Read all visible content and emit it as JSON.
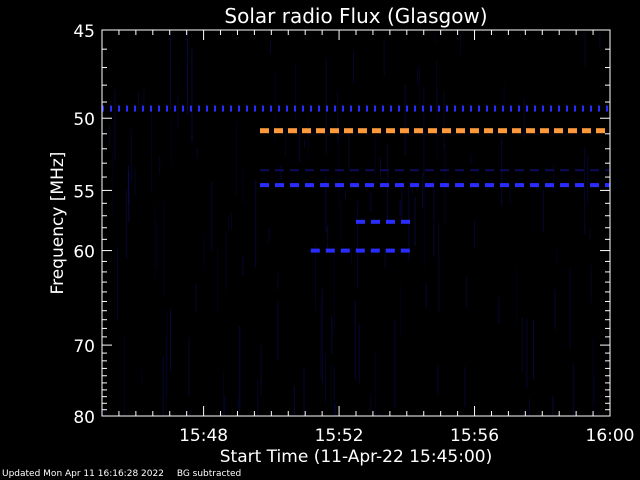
{
  "chart_data": {
    "type": "heatmap",
    "title": "Solar radio Flux (Glasgow)",
    "xlabel": "Start Time (11-Apr-22 15:45:00)",
    "ylabel": "Frequency [MHz]",
    "x_range": [
      "15:45:00",
      "16:00:00"
    ],
    "y_range": [
      45,
      80
    ],
    "x_ticks": [
      "15:48",
      "15:52",
      "15:56",
      "16:00"
    ],
    "y_ticks": [
      45,
      50,
      55,
      60,
      70,
      80
    ],
    "y_scale": "reciprocal",
    "colors": {
      "background": "#000000",
      "axes": "#ffffff",
      "strong": "#ff9a3c",
      "medium": "#2a2cff",
      "weak": "#0c0c5a"
    },
    "features": [
      {
        "kind": "band",
        "freq_mhz": 49.4,
        "start": "15:45:00",
        "end": "16:00:00",
        "intensity": "medium"
      },
      {
        "kind": "band",
        "freq_mhz": 50.8,
        "start": "15:49:40",
        "end": "16:00:00",
        "intensity": "strong"
      },
      {
        "kind": "band",
        "freq_mhz": 53.5,
        "start": "15:49:40",
        "end": "16:00:00",
        "intensity": "weak"
      },
      {
        "kind": "band",
        "freq_mhz": 54.6,
        "start": "15:49:40",
        "end": "16:00:00",
        "intensity": "medium"
      },
      {
        "kind": "band",
        "freq_mhz": 57.5,
        "start": "15:52:30",
        "end": "15:54:10",
        "intensity": "medium"
      },
      {
        "kind": "band",
        "freq_mhz": 60.0,
        "start": "15:51:10",
        "end": "15:54:10",
        "intensity": "medium"
      }
    ]
  },
  "footer": {
    "updated": "Updated Mon Apr 11 16:16:28 2022",
    "note": "BG subtracted"
  }
}
